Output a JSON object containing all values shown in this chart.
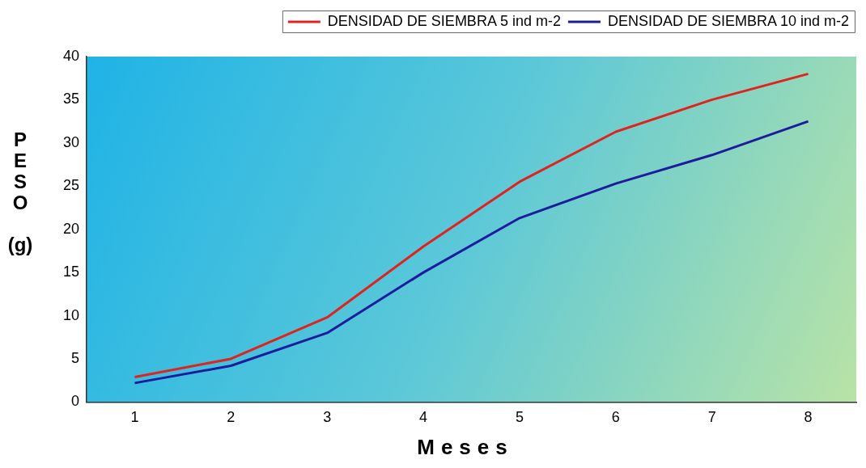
{
  "chart_data": {
    "type": "line",
    "xlabel": "Meses",
    "ylabel": "PESO (g)",
    "categories": [
      "1",
      "2",
      "3",
      "4",
      "5",
      "6",
      "7",
      "8"
    ],
    "series": [
      {
        "name": "DENSIDAD DE SIEMBRA 5 ind m-2",
        "color": "#e0231c",
        "values": [
          2.9,
          5.0,
          9.8,
          18,
          25.5,
          31.3,
          35,
          38
        ]
      },
      {
        "name": "DENSIDAD DE SIEMBRA 10 ind m-2",
        "color": "#1c1c9c",
        "values": [
          2.2,
          4.2,
          8.0,
          15,
          21.3,
          25.3,
          28.6,
          32.5
        ]
      }
    ],
    "ylim": [
      0,
      40
    ],
    "yticks": [
      0,
      5,
      10,
      15,
      20,
      25,
      30,
      35,
      40
    ],
    "grid": false,
    "legend": "top",
    "marker": "none",
    "line_style": "solid"
  }
}
